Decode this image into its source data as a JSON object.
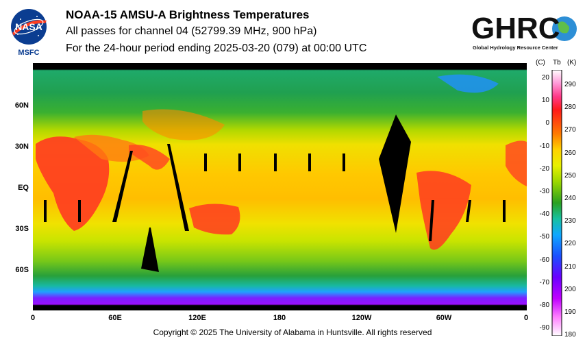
{
  "header": {
    "title": "NOAA-15 AMSU-A Brightness Temperatures",
    "subtitle": "All passes for channel 04 (52799.39 MHz, 900 hPa)",
    "period": "For the 24-hour period ending 2025-03-20 (079) at 00:00 UTC"
  },
  "logos": {
    "nasa_text": "NASA",
    "msfc_text": "MSFC",
    "ghrc_text": "GHRC",
    "ghrc_subtext": "Global Hydrology Resource Center"
  },
  "map": {
    "lat_labels": [
      "60N",
      "30N",
      "EQ",
      "30S",
      "60S"
    ],
    "lon_labels": [
      "0",
      "60E",
      "120E",
      "180",
      "120W",
      "60W",
      "0"
    ]
  },
  "colorbar": {
    "header_c": "(C)",
    "header_tb": "Tb",
    "header_k": "(K)",
    "celsius_ticks": [
      "20",
      "10",
      "0",
      "-10",
      "-20",
      "-30",
      "-40",
      "-50",
      "-60",
      "-70",
      "-80",
      "-90"
    ],
    "kelvin_ticks": [
      "290",
      "280",
      "270",
      "260",
      "250",
      "240",
      "230",
      "220",
      "210",
      "200",
      "190",
      "180"
    ],
    "colors": [
      "#ffffff",
      "#ff8ad0",
      "#ff3a8a",
      "#ff2020",
      "#ff7a00",
      "#ffd200",
      "#e8f000",
      "#9cd800",
      "#2aa020",
      "#16c0a0",
      "#10a8ff",
      "#1a50ff",
      "#6a00ff",
      "#c000ff"
    ]
  },
  "footer": {
    "copyright": "Copyright © 2025 The University of Alabama in Huntsville.  All rights reserved"
  }
}
